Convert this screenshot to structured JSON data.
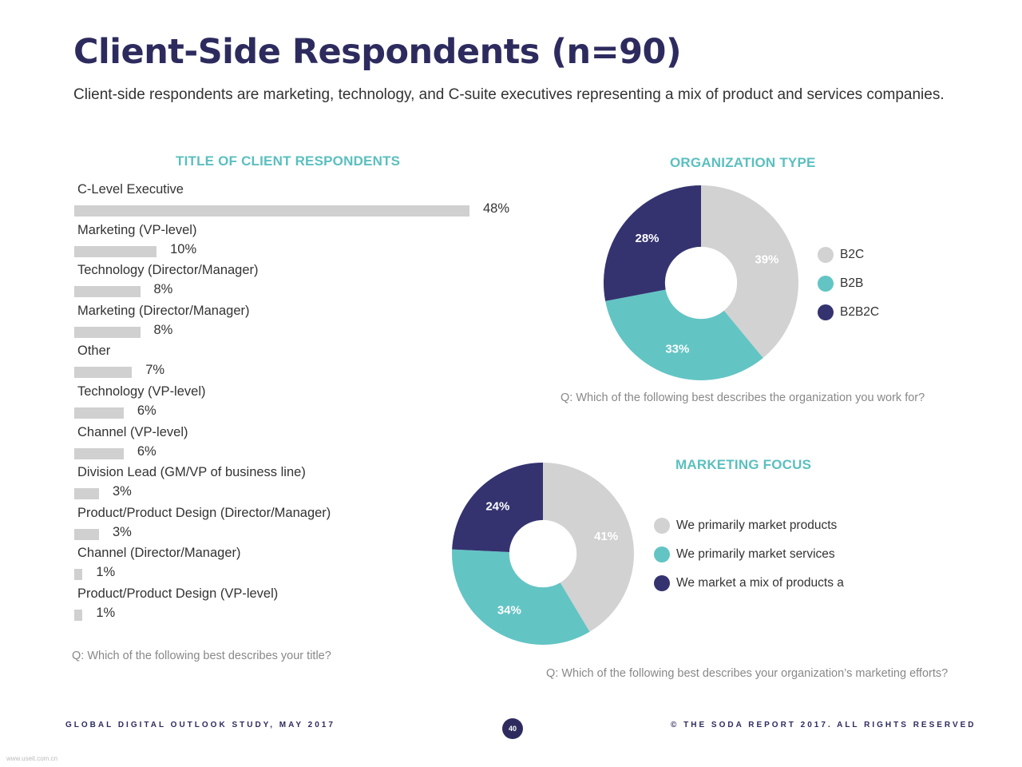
{
  "header": {
    "title": "Client-Side Respondents (n=90)",
    "subtitle": "Client-side respondents are marketing, technology, and C-suite executives representing a mix of product and services companies."
  },
  "colors": {
    "navy": "#343370",
    "teal": "#63c4c4",
    "gray": "#d2d2d2",
    "accent_title": "#5bbfbf",
    "bar": "#d0d0d0"
  },
  "chart_data": [
    {
      "type": "bar",
      "orientation": "horizontal",
      "title": "TITLE OF CLIENT RESPONDENTS",
      "categories": [
        "C-Level Executive",
        "Marketing (VP-level)",
        "Technology (Director/Manager)",
        "Marketing (Director/Manager)",
        "Other",
        "Technology (VP-level)",
        "Channel (VP-level)",
        "Division Lead (GM/VP of business line)",
        "Product/Product Design (Director/Manager)",
        "Channel (Director/Manager)",
        "Product/Product Design (VP-level)"
      ],
      "values": [
        48,
        10,
        8,
        8,
        7,
        6,
        6,
        3,
        3,
        1,
        1
      ],
      "labels": [
        "48%",
        "10%",
        "8%",
        "8%",
        "7%",
        "6%",
        "6%",
        "3%",
        "3%",
        "1%",
        "1%"
      ],
      "question": "Q: Which of the following best describes your title?"
    },
    {
      "type": "pie",
      "title": "ORGANIZATION TYPE",
      "categories": [
        "B2C",
        "B2B",
        "B2B2C"
      ],
      "values": [
        39,
        33,
        28
      ],
      "labels": [
        "39%",
        "33%",
        "28%"
      ],
      "colors": [
        "#d2d2d2",
        "#63c4c4",
        "#343370"
      ],
      "legend": "right",
      "question": "Q: Which of the following best describes the organization you work for?"
    },
    {
      "type": "pie",
      "title": "MARKETING FOCUS",
      "categories": [
        "We primarily market products",
        "We primarily market services",
        "We market a mix of products a"
      ],
      "values": [
        41,
        34,
        24
      ],
      "labels": [
        "41%",
        "34%",
        "24%"
      ],
      "colors": [
        "#d2d2d2",
        "#63c4c4",
        "#343370"
      ],
      "legend": "right",
      "question": "Q: Which of the following best describes your organization’s marketing efforts?"
    }
  ],
  "footer": {
    "left": "GLOBAL DIGITAL OUTLOOK STUDY, MAY 2017",
    "page": "40",
    "right": "© THE SODA REPORT 2017. ALL RIGHTS RESERVED",
    "watermark": "www.useit.com.cn"
  }
}
